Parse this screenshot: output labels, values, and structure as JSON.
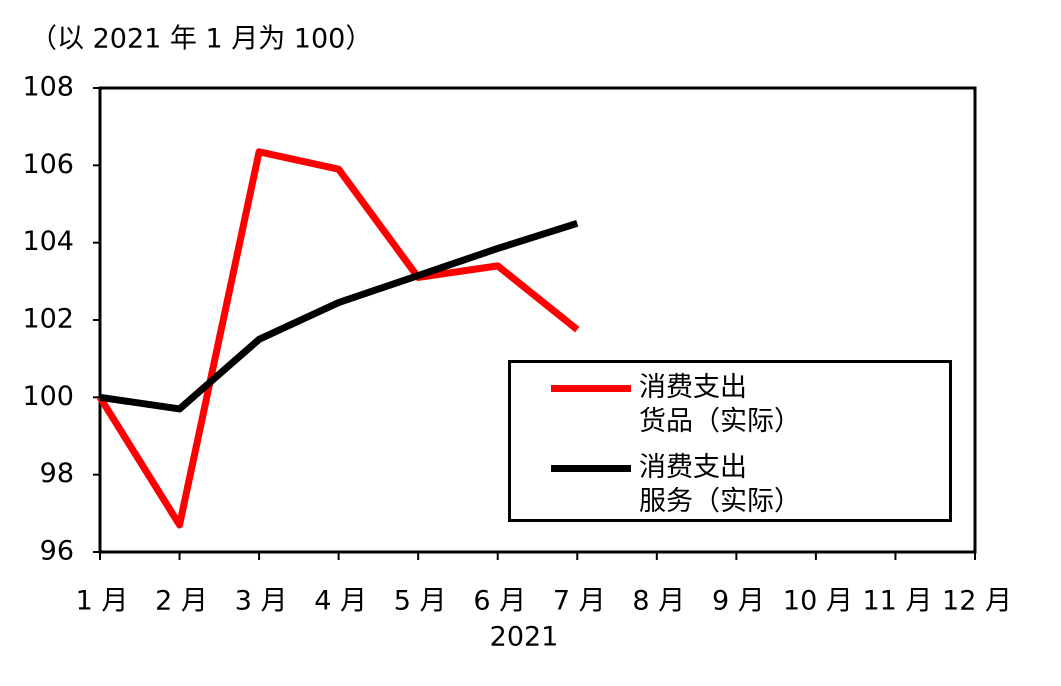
{
  "chart_data": {
    "type": "line",
    "y_axis_label": "（以 2021 年 1 月为 100）",
    "x_axis_label": "2021",
    "categories": [
      "1 月",
      "2 月",
      "3 月",
      "4 月",
      "5 月",
      "6 月",
      "7 月",
      "8 月",
      "9 月",
      "10 月",
      "11 月",
      "12 月"
    ],
    "series": [
      {
        "name": "消费支出\n货品（实际）",
        "color": "#ff0000",
        "values": [
          100,
          96.7,
          106.35,
          105.9,
          103.1,
          103.4,
          101.75,
          null,
          null,
          null,
          null,
          null
        ]
      },
      {
        "name": "消费支出\n服务（实际）",
        "color": "#000000",
        "values": [
          100,
          99.7,
          101.5,
          102.45,
          103.15,
          103.85,
          104.5,
          null,
          null,
          null,
          null,
          null
        ]
      }
    ],
    "ylim": [
      96,
      108
    ],
    "yticks": [
      96,
      98,
      100,
      102,
      104,
      106,
      108
    ]
  }
}
